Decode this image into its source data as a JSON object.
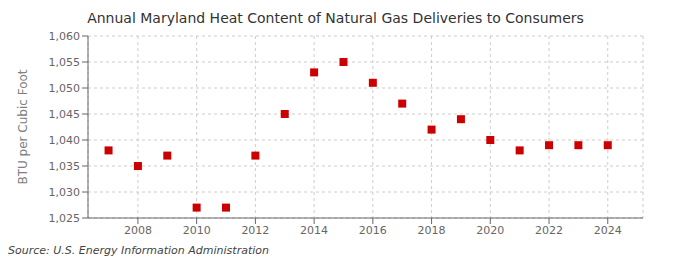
{
  "chart_data": {
    "type": "scatter",
    "title": "Annual Maryland Heat Content of Natural Gas Deliveries to Consumers",
    "y_label": "BTU per Cubic Foot",
    "annotations": [
      "Source: U.S. Energy Information Administration"
    ],
    "x": [
      2007,
      2008,
      2009,
      2010,
      2011,
      2012,
      2013,
      2014,
      2015,
      2016,
      2017,
      2018,
      2019,
      2020,
      2021,
      2022,
      2023,
      2024
    ],
    "values": [
      1038,
      1035,
      1037,
      1027,
      1027,
      1037,
      1045,
      1053,
      1055,
      1051,
      1047,
      1042,
      1044,
      1040,
      1038,
      1039,
      1039,
      1039
    ],
    "color": "#cc0000",
    "marker": "square",
    "xlim": [
      2006.3,
      2025.2
    ],
    "xticks": [
      2008,
      2010,
      2012,
      2014,
      2016,
      2018,
      2020,
      2022,
      2024
    ],
    "ylim": [
      1025,
      1060
    ],
    "yticks": [
      {
        "value": 1025,
        "label": "1,025"
      },
      {
        "value": 1030,
        "label": "1,030"
      },
      {
        "value": 1035,
        "label": "1,035"
      },
      {
        "value": 1040,
        "label": "1,040"
      },
      {
        "value": 1045,
        "label": "1,045"
      },
      {
        "value": 1050,
        "label": "1,050"
      },
      {
        "value": 1055,
        "label": "1,055"
      },
      {
        "value": 1060,
        "label": "1,060"
      }
    ],
    "grid": true
  }
}
